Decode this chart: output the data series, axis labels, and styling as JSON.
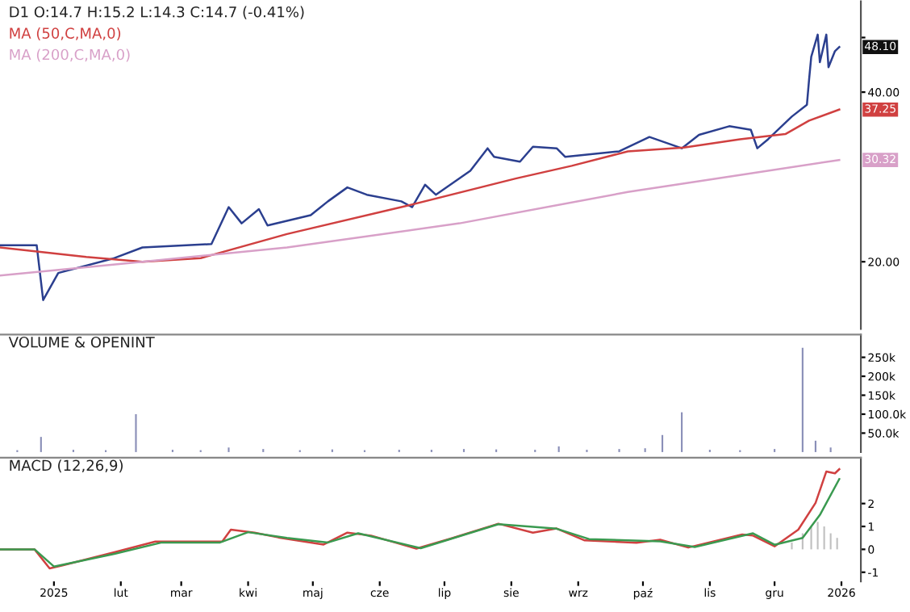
{
  "chart_data": [
    {
      "type": "line",
      "title": "D1 O:14.7 H:15.2 L:14.3 C:14.7 (-0.41%)",
      "log": "y",
      "ylim": [
        15.2,
        58
      ],
      "yticks": [
        {
          "value": 20,
          "label": "20.00"
        },
        {
          "value": 40,
          "label": "40.00"
        },
        {
          "value": 50,
          "label": null
        }
      ],
      "xlim": [
        "2024-12-07",
        "2026-01-10"
      ],
      "tick_labels": "y",
      "grid": false,
      "legend": "top left",
      "series": [
        {
          "color": "#2b3f8f",
          "x": [
            "2024-12-07",
            "2024-12-24",
            "2024-12-27",
            "2025-01-03",
            "2025-01-29",
            "2025-02-11",
            "2025-03-15",
            "2025-03-23",
            "2025-03-29",
            "2025-04-06",
            "2025-04-10",
            "2025-04-30",
            "2025-05-08",
            "2025-05-17",
            "2025-05-26",
            "2025-06-11",
            "2025-06-16",
            "2025-06-22",
            "2025-06-27",
            "2025-07-13",
            "2025-07-21",
            "2025-07-24",
            "2025-08-05",
            "2025-08-11",
            "2025-08-22",
            "2025-08-26",
            "2025-09-20",
            "2025-10-04",
            "2025-10-19",
            "2025-10-27",
            "2025-11-10",
            "2025-11-20",
            "2025-11-23",
            "2025-11-28",
            "2025-12-09",
            "2025-12-16",
            "2025-12-17",
            "2025-12-18",
            "2025-12-21",
            "2025-12-22",
            "2025-12-25",
            "2025-12-26",
            "2025-12-29",
            "2025-12-31"
          ],
          "values": [
            21.4,
            21.4,
            17.1,
            19.1,
            20.3,
            21.2,
            21.5,
            25.0,
            23.4,
            24.8,
            23.2,
            24.2,
            25.6,
            27.1,
            26.3,
            25.6,
            25.0,
            27.4,
            26.3,
            29.0,
            31.8,
            30.7,
            30.1,
            32.0,
            31.8,
            30.7,
            31.4,
            33.3,
            31.8,
            33.6,
            34.8,
            34.3,
            31.8,
            33.0,
            36.2,
            38.0,
            42.1,
            46.2,
            50.6,
            45.2,
            50.6,
            44.3,
            47.3,
            48.1
          ]
        },
        {
          "name": "MA (50,C,MA,0)",
          "color": "#d04040",
          "x": [
            "2024-12-07",
            "2025-01-16",
            "2025-02-11",
            "2025-03-10",
            "2025-04-19",
            "2025-06-11",
            "2025-08-03",
            "2025-08-29",
            "2025-09-24",
            "2025-10-20",
            "2025-11-15",
            "2025-12-06",
            "2025-12-17",
            "2025-12-31"
          ],
          "values": [
            21.2,
            20.4,
            20.0,
            20.3,
            22.4,
            25.0,
            28.1,
            29.6,
            31.4,
            31.9,
            33.0,
            33.7,
            35.6,
            37.25
          ]
        },
        {
          "name": "MA (200,C,MA,0)",
          "color": "#d8a0c8",
          "x": [
            "2024-12-07",
            "2025-02-11",
            "2025-04-19",
            "2025-07-08",
            "2025-09-24",
            "2025-11-15",
            "2025-12-31"
          ],
          "values": [
            18.9,
            20.0,
            21.2,
            23.4,
            26.6,
            28.5,
            30.32
          ]
        }
      ],
      "annotations": [
        {
          "text": "48.10",
          "y": 48.1
        },
        {
          "text": "37.25",
          "y": 37.25
        },
        {
          "text": "30.32",
          "y": 30.32
        }
      ]
    },
    {
      "type": "bar",
      "title": "VOLUME & OPENINT",
      "ylim": [
        0,
        310000
      ],
      "yticks": [
        {
          "value": 50000,
          "label": "50.0k"
        },
        {
          "value": 100000,
          "label": "100.0k"
        },
        {
          "value": 150000,
          "label": "150k"
        },
        {
          "value": 200000,
          "label": "200k"
        },
        {
          "value": 250000,
          "label": "250k"
        }
      ],
      "xlim": [
        "2024-12-07",
        "2026-01-10"
      ],
      "tick_labels": "y",
      "grid": false,
      "series": [
        {
          "color": "#8a8fb8",
          "x": [
            "2024-12-15",
            "2024-12-26",
            "2025-01-10",
            "2025-01-25",
            "2025-02-08",
            "2025-02-25",
            "2025-03-10",
            "2025-03-23",
            "2025-04-08",
            "2025-04-25",
            "2025-05-10",
            "2025-05-25",
            "2025-06-10",
            "2025-06-25",
            "2025-07-10",
            "2025-07-25",
            "2025-08-12",
            "2025-08-23",
            "2025-09-05",
            "2025-09-20",
            "2025-10-02",
            "2025-10-10",
            "2025-10-19",
            "2025-11-01",
            "2025-11-15",
            "2025-12-01",
            "2025-12-14",
            "2025-12-20",
            "2025-12-27"
          ],
          "values": [
            5000,
            40000,
            6000,
            5000,
            100000,
            6000,
            5000,
            12000,
            8000,
            5000,
            7000,
            5000,
            6000,
            6000,
            8000,
            7000,
            6000,
            15000,
            6000,
            8000,
            10000,
            45000,
            105000,
            6000,
            5000,
            8000,
            275000,
            30000,
            12000
          ]
        }
      ]
    },
    {
      "type": "line",
      "title": "MACD (12,26,9)",
      "ylim": [
        -1.4,
        4.0
      ],
      "yticks": [
        -1,
        0,
        1,
        2
      ],
      "xlim": [
        "2024-12-07",
        "2026-01-10"
      ],
      "grid": false,
      "xticks": [
        {
          "value": "2025-01-01",
          "label": "2025"
        },
        {
          "value": "2025-02-01",
          "label": "lut"
        },
        {
          "value": "2025-03-01",
          "label": "mar"
        },
        {
          "value": "2025-04-01",
          "label": "kwi"
        },
        {
          "value": "2025-05-01",
          "label": "maj"
        },
        {
          "value": "2025-06-01",
          "label": "cze"
        },
        {
          "value": "2025-07-01",
          "label": "lip"
        },
        {
          "value": "2025-08-01",
          "label": "sie"
        },
        {
          "value": "2025-09-01",
          "label": "wrz"
        },
        {
          "value": "2025-10-01",
          "label": "paź"
        },
        {
          "value": "2025-11-01",
          "label": "lis"
        },
        {
          "value": "2025-12-01",
          "label": "gru"
        },
        {
          "value": "2026-01-01",
          "label": "2026"
        }
      ],
      "series": [
        {
          "type": "bar",
          "color": "#c0c0c0",
          "x": [
            "2025-12-09",
            "2025-12-14",
            "2025-12-18",
            "2025-12-21",
            "2025-12-24",
            "2025-12-27",
            "2025-12-30"
          ],
          "values": [
            0.3,
            0.7,
            1.0,
            1.2,
            1.0,
            0.7,
            0.5
          ]
        },
        {
          "color": "#d04040",
          "x": [
            "2024-12-07",
            "2024-12-23",
            "2024-12-30",
            "2025-01-05",
            "2025-01-29",
            "2025-02-17",
            "2025-03-05",
            "2025-03-20",
            "2025-03-24",
            "2025-04-04",
            "2025-04-15",
            "2025-05-06",
            "2025-05-17",
            "2025-05-28",
            "2025-06-18",
            "2025-07-04",
            "2025-07-26",
            "2025-08-11",
            "2025-08-22",
            "2025-09-04",
            "2025-09-28",
            "2025-10-09",
            "2025-10-22",
            "2025-11-16",
            "2025-11-21",
            "2025-12-01",
            "2025-12-12",
            "2025-12-20",
            "2025-12-25",
            "2025-12-29",
            "2025-12-31"
          ],
          "values": [
            0,
            0,
            -0.83,
            -0.7,
            -0.13,
            0.34,
            0.34,
            0.34,
            0.86,
            0.73,
            0.52,
            0.21,
            0.73,
            0.6,
            0.03,
            0.47,
            1.12,
            0.73,
            0.91,
            0.39,
            0.29,
            0.42,
            0.08,
            0.65,
            0.6,
            0.13,
            0.86,
            2.03,
            3.4,
            3.32,
            3.5
          ]
        },
        {
          "color": "#3a9a50",
          "x": [
            "2024-12-07",
            "2024-12-23",
            "2025-01-01",
            "2025-01-29",
            "2025-02-20",
            "2025-03-19",
            "2025-04-01",
            "2025-04-19",
            "2025-05-08",
            "2025-05-22",
            "2025-06-20",
            "2025-07-26",
            "2025-08-22",
            "2025-09-06",
            "2025-10-09",
            "2025-10-25",
            "2025-11-21",
            "2025-12-01",
            "2025-12-14",
            "2025-12-22",
            "2025-12-31"
          ],
          "values": [
            0,
            0,
            -0.75,
            -0.2,
            0.3,
            0.3,
            0.75,
            0.5,
            0.3,
            0.7,
            0.05,
            1.1,
            0.9,
            0.45,
            0.35,
            0.1,
            0.7,
            0.2,
            0.5,
            1.5,
            3.07
          ]
        }
      ]
    }
  ]
}
